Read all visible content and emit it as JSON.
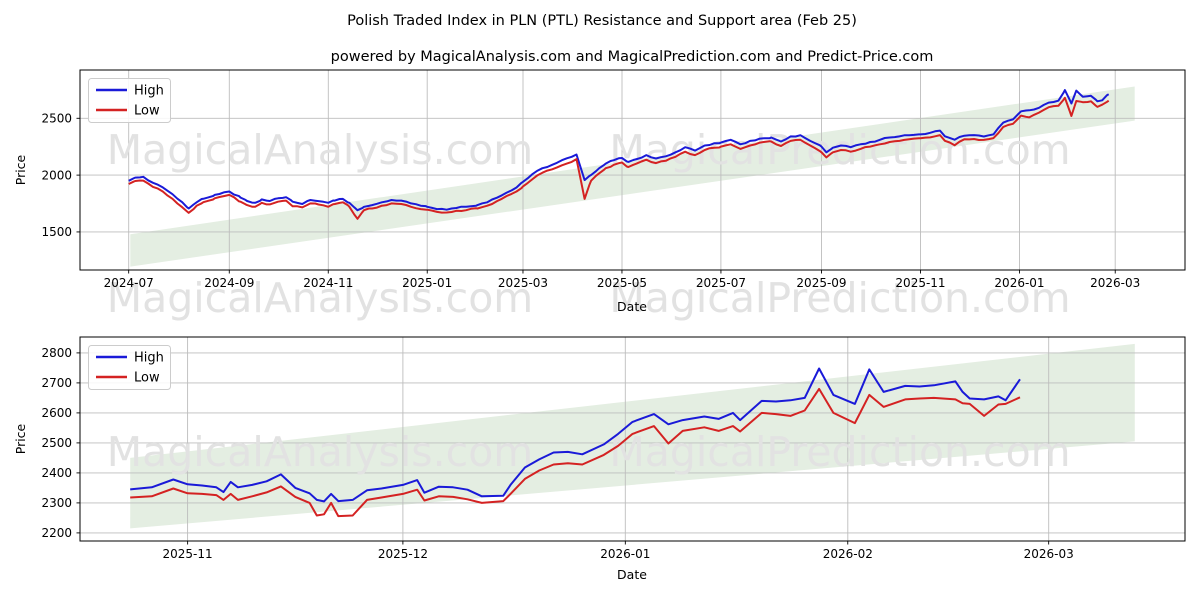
{
  "figure": {
    "title": "Polish Traded Index in PLN (PTL) Resistance and Support area (Feb 25)",
    "subtitle": "powered by MagicalAnalysis.com and MagicalPrediction.com and Predict-Price.com"
  },
  "legend": {
    "high_label": "High",
    "low_label": "Low"
  },
  "watermarks": {
    "analysis": "MagicalAnalysis.com",
    "prediction": "MagicalPrediction.com"
  },
  "colors": {
    "high": "#1a1ad8",
    "low": "#d42222",
    "band": "#e4eee2",
    "grid": "#bdbdbd",
    "watermark": "#e2e2e2",
    "spine": "#000000"
  },
  "chart_data": [
    {
      "type": "line",
      "name": "full-history",
      "xlabel": "Date",
      "ylabel": "Price",
      "x_ticks": [
        {
          "date": "2024-07-01",
          "label": "2024-07"
        },
        {
          "date": "2024-09-01",
          "label": "2024-09"
        },
        {
          "date": "2024-11-01",
          "label": "2024-11"
        },
        {
          "date": "2025-01-01",
          "label": "2025-01"
        },
        {
          "date": "2025-03-01",
          "label": "2025-03"
        },
        {
          "date": "2025-05-01",
          "label": "2025-05"
        },
        {
          "date": "2025-07-01",
          "label": "2025-07"
        },
        {
          "date": "2025-09-01",
          "label": "2025-09"
        },
        {
          "date": "2025-11-01",
          "label": "2025-11"
        },
        {
          "date": "2026-01-01",
          "label": "2026-01"
        },
        {
          "date": "2026-03-01",
          "label": "2026-03"
        }
      ],
      "y_ticks": [
        1500,
        2000,
        2500
      ],
      "ylim": [
        1165,
        2925
      ],
      "xlim": [
        "2024-06-01",
        "2026-04-13"
      ],
      "grid": true,
      "legend_position": "upper-left",
      "band": {
        "x": [
          "2024-07-02",
          "2026-03-13"
        ],
        "upper": [
          1480,
          2780
        ],
        "lower": [
          1195,
          2480
        ]
      },
      "jitter": 6,
      "step_days": 3,
      "series_format": [
        "date",
        "high",
        "low"
      ],
      "points": [
        [
          "2024-07-01",
          1950,
          1922
        ],
        [
          "2024-07-05",
          1978,
          1948
        ],
        [
          "2024-07-10",
          1985,
          1952
        ],
        [
          "2024-07-16",
          1932,
          1896
        ],
        [
          "2024-07-22",
          1892,
          1856
        ],
        [
          "2024-07-28",
          1832,
          1792
        ],
        [
          "2024-08-03",
          1762,
          1718
        ],
        [
          "2024-08-07",
          1706,
          1668
        ],
        [
          "2024-08-12",
          1762,
          1732
        ],
        [
          "2024-08-16",
          1792,
          1762
        ],
        [
          "2024-08-23",
          1826,
          1796
        ],
        [
          "2024-08-29",
          1850,
          1816
        ],
        [
          "2024-09-01",
          1856,
          1826
        ],
        [
          "2024-09-08",
          1802,
          1766
        ],
        [
          "2024-09-12",
          1772,
          1736
        ],
        [
          "2024-09-17",
          1756,
          1722
        ],
        [
          "2024-09-21",
          1786,
          1756
        ],
        [
          "2024-09-26",
          1772,
          1742
        ],
        [
          "2024-10-01",
          1796,
          1766
        ],
        [
          "2024-10-06",
          1806,
          1776
        ],
        [
          "2024-10-10",
          1766,
          1726
        ],
        [
          "2024-10-16",
          1746,
          1716
        ],
        [
          "2024-10-21",
          1781,
          1751
        ],
        [
          "2024-10-26",
          1771,
          1741
        ],
        [
          "2024-11-01",
          1756,
          1721
        ],
        [
          "2024-11-05",
          1776,
          1746
        ],
        [
          "2024-11-10",
          1791,
          1761
        ],
        [
          "2024-11-14",
          1756,
          1721
        ],
        [
          "2024-11-19",
          1691,
          1616
        ],
        [
          "2024-11-23",
          1721,
          1691
        ],
        [
          "2024-11-28",
          1736,
          1706
        ],
        [
          "2024-12-04",
          1761,
          1731
        ],
        [
          "2024-12-10",
          1781,
          1751
        ],
        [
          "2024-12-16",
          1776,
          1746
        ],
        [
          "2024-12-22",
          1751,
          1721
        ],
        [
          "2024-12-28",
          1731,
          1701
        ],
        [
          "2025-01-01",
          1721,
          1696
        ],
        [
          "2025-01-07",
          1701,
          1676
        ],
        [
          "2025-01-13",
          1696,
          1671
        ],
        [
          "2025-01-19",
          1711,
          1686
        ],
        [
          "2025-01-25",
          1721,
          1691
        ],
        [
          "2025-02-01",
          1736,
          1706
        ],
        [
          "2025-02-07",
          1761,
          1731
        ],
        [
          "2025-02-13",
          1801,
          1771
        ],
        [
          "2025-02-19",
          1846,
          1816
        ],
        [
          "2025-02-25",
          1891,
          1856
        ],
        [
          "2025-03-01",
          1941,
          1901
        ],
        [
          "2025-03-07",
          2011,
          1966
        ],
        [
          "2025-03-13",
          2061,
          2021
        ],
        [
          "2025-03-19",
          2091,
          2051
        ],
        [
          "2025-03-25",
          2131,
          2086
        ],
        [
          "2025-03-31",
          2161,
          2116
        ],
        [
          "2025-04-03",
          2181,
          2141
        ],
        [
          "2025-04-08",
          1956,
          1791
        ],
        [
          "2025-04-12",
          2001,
          1951
        ],
        [
          "2025-04-17",
          2061,
          2016
        ],
        [
          "2025-04-21",
          2101,
          2061
        ],
        [
          "2025-04-26",
          2131,
          2091
        ],
        [
          "2025-05-01",
          2151,
          2111
        ],
        [
          "2025-05-05",
          2116,
          2071
        ],
        [
          "2025-05-10",
          2141,
          2101
        ],
        [
          "2025-05-16",
          2176,
          2136
        ],
        [
          "2025-05-22",
          2146,
          2106
        ],
        [
          "2025-05-28",
          2166,
          2126
        ],
        [
          "2025-06-03",
          2201,
          2161
        ],
        [
          "2025-06-09",
          2246,
          2206
        ],
        [
          "2025-06-15",
          2216,
          2176
        ],
        [
          "2025-06-21",
          2261,
          2221
        ],
        [
          "2025-06-27",
          2281,
          2241
        ],
        [
          "2025-07-01",
          2286,
          2251
        ],
        [
          "2025-07-07",
          2311,
          2271
        ],
        [
          "2025-07-13",
          2271,
          2231
        ],
        [
          "2025-07-19",
          2301,
          2261
        ],
        [
          "2025-07-25",
          2321,
          2286
        ],
        [
          "2025-08-01",
          2331,
          2296
        ],
        [
          "2025-08-07",
          2296,
          2256
        ],
        [
          "2025-08-13",
          2341,
          2301
        ],
        [
          "2025-08-19",
          2351,
          2311
        ],
        [
          "2025-08-25",
          2301,
          2261
        ],
        [
          "2025-09-01",
          2251,
          2201
        ],
        [
          "2025-09-04",
          2201,
          2156
        ],
        [
          "2025-09-08",
          2241,
          2201
        ],
        [
          "2025-09-13",
          2261,
          2221
        ],
        [
          "2025-09-19",
          2246,
          2206
        ],
        [
          "2025-09-25",
          2271,
          2231
        ],
        [
          "2025-10-01",
          2291,
          2251
        ],
        [
          "2025-10-07",
          2311,
          2271
        ],
        [
          "2025-10-13",
          2331,
          2291
        ],
        [
          "2025-10-19",
          2341,
          2301
        ],
        [
          "2025-10-25",
          2351,
          2316
        ],
        [
          "2025-11-01",
          2358,
          2325
        ],
        [
          "2025-11-07",
          2372,
          2332
        ],
        [
          "2025-11-13",
          2392,
          2352
        ],
        [
          "2025-11-16",
          2342,
          2302
        ],
        [
          "2025-11-22",
          2312,
          2262
        ],
        [
          "2025-11-28",
          2347,
          2315
        ],
        [
          "2025-12-04",
          2352,
          2318
        ],
        [
          "2025-12-10",
          2340,
          2310
        ],
        [
          "2025-12-16",
          2358,
          2326
        ],
        [
          "2025-12-22",
          2462,
          2424
        ],
        [
          "2025-12-28",
          2490,
          2452
        ],
        [
          "2026-01-02",
          2562,
          2524
        ],
        [
          "2026-01-07",
          2570,
          2508
        ],
        [
          "2026-01-13",
          2592,
          2550
        ],
        [
          "2026-01-19",
          2638,
          2598
        ],
        [
          "2026-01-25",
          2655,
          2610
        ],
        [
          "2026-01-29",
          2748,
          2680
        ],
        [
          "2026-02-02",
          2630,
          2520
        ],
        [
          "2026-02-05",
          2744,
          2652
        ],
        [
          "2026-02-09",
          2690,
          2642
        ],
        [
          "2026-02-14",
          2698,
          2650
        ],
        [
          "2026-02-18",
          2650,
          2600
        ],
        [
          "2026-02-21",
          2658,
          2620
        ],
        [
          "2026-02-25",
          2712,
          2655
        ]
      ]
    },
    {
      "type": "line",
      "name": "recent-detail",
      "xlabel": "Date",
      "ylabel": "Price",
      "x_ticks": [
        {
          "date": "2025-11-01",
          "label": "2025-11"
        },
        {
          "date": "2025-12-01",
          "label": "2025-12"
        },
        {
          "date": "2026-01-01",
          "label": "2026-01"
        },
        {
          "date": "2026-02-01",
          "label": "2026-02"
        },
        {
          "date": "2026-03-01",
          "label": "2026-03"
        }
      ],
      "y_ticks": [
        2200,
        2300,
        2400,
        2500,
        2600,
        2700,
        2800
      ],
      "ylim": [
        2173,
        2853
      ],
      "xlim": [
        "2025-10-17",
        "2026-03-20"
      ],
      "grid": true,
      "legend_position": "upper-left",
      "band": {
        "x": [
          "2025-10-24",
          "2026-03-13"
        ],
        "upper": [
          2450,
          2830
        ],
        "lower": [
          2215,
          2505
        ]
      },
      "jitter": 0,
      "step_days": 0,
      "series_format": [
        "date",
        "high",
        "low"
      ],
      "points": [
        [
          "2025-10-24",
          2345,
          2318
        ],
        [
          "2025-10-27",
          2352,
          2322
        ],
        [
          "2025-10-30",
          2378,
          2348
        ],
        [
          "2025-11-01",
          2362,
          2332
        ],
        [
          "2025-11-03",
          2358,
          2330
        ],
        [
          "2025-11-05",
          2352,
          2326
        ],
        [
          "2025-11-06",
          2336,
          2310
        ],
        [
          "2025-11-07",
          2370,
          2330
        ],
        [
          "2025-11-08",
          2352,
          2310
        ],
        [
          "2025-11-10",
          2360,
          2322
        ],
        [
          "2025-11-12",
          2372,
          2335
        ],
        [
          "2025-11-14",
          2395,
          2355
        ],
        [
          "2025-11-16",
          2350,
          2320
        ],
        [
          "2025-11-18",
          2332,
          2300
        ],
        [
          "2025-11-19",
          2310,
          2258
        ],
        [
          "2025-11-20",
          2305,
          2262
        ],
        [
          "2025-11-21",
          2330,
          2300
        ],
        [
          "2025-11-22",
          2306,
          2256
        ],
        [
          "2025-11-24",
          2310,
          2258
        ],
        [
          "2025-11-26",
          2342,
          2310
        ],
        [
          "2025-11-28",
          2348,
          2318
        ],
        [
          "2025-12-01",
          2360,
          2330
        ],
        [
          "2025-12-03",
          2376,
          2344
        ],
        [
          "2025-12-04",
          2334,
          2308
        ],
        [
          "2025-12-06",
          2354,
          2322
        ],
        [
          "2025-12-08",
          2352,
          2320
        ],
        [
          "2025-12-10",
          2344,
          2312
        ],
        [
          "2025-12-12",
          2322,
          2300
        ],
        [
          "2025-12-15",
          2324,
          2306
        ],
        [
          "2025-12-16",
          2360,
          2330
        ],
        [
          "2025-12-18",
          2418,
          2380
        ],
        [
          "2025-12-20",
          2445,
          2408
        ],
        [
          "2025-12-22",
          2468,
          2428
        ],
        [
          "2025-12-24",
          2470,
          2432
        ],
        [
          "2025-12-26",
          2462,
          2428
        ],
        [
          "2025-12-29",
          2495,
          2460
        ],
        [
          "2025-12-31",
          2530,
          2490
        ],
        [
          "2026-01-02",
          2570,
          2530
        ],
        [
          "2026-01-05",
          2596,
          2556
        ],
        [
          "2026-01-07",
          2562,
          2498
        ],
        [
          "2026-01-09",
          2576,
          2540
        ],
        [
          "2026-01-12",
          2588,
          2552
        ],
        [
          "2026-01-14",
          2580,
          2540
        ],
        [
          "2026-01-16",
          2600,
          2556
        ],
        [
          "2026-01-17",
          2576,
          2538
        ],
        [
          "2026-01-20",
          2640,
          2600
        ],
        [
          "2026-01-22",
          2638,
          2596
        ],
        [
          "2026-01-24",
          2642,
          2590
        ],
        [
          "2026-01-26",
          2650,
          2608
        ],
        [
          "2026-01-28",
          2748,
          2680
        ],
        [
          "2026-01-30",
          2660,
          2600
        ],
        [
          "2026-02-02",
          2630,
          2566
        ],
        [
          "2026-02-04",
          2745,
          2660
        ],
        [
          "2026-02-06",
          2670,
          2620
        ],
        [
          "2026-02-09",
          2690,
          2645
        ],
        [
          "2026-02-11",
          2688,
          2648
        ],
        [
          "2026-02-13",
          2692,
          2650
        ],
        [
          "2026-02-16",
          2705,
          2645
        ],
        [
          "2026-02-17",
          2670,
          2632
        ],
        [
          "2026-02-18",
          2648,
          2630
        ],
        [
          "2026-02-20",
          2645,
          2590
        ],
        [
          "2026-02-22",
          2655,
          2628
        ],
        [
          "2026-02-23",
          2642,
          2630
        ],
        [
          "2026-02-25",
          2712,
          2652
        ]
      ]
    }
  ]
}
